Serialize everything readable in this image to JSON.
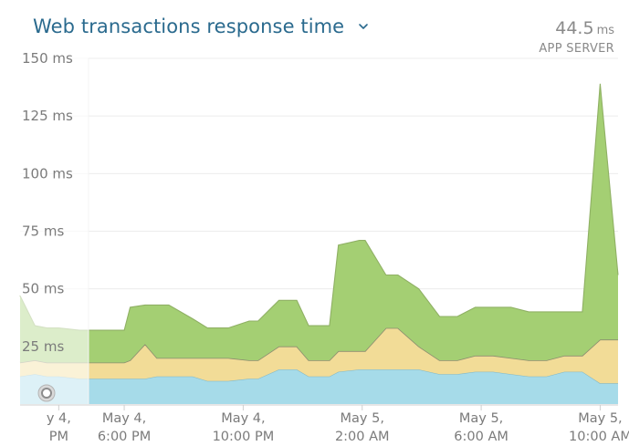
{
  "header": {
    "title": "Web transactions response time",
    "metric_value": "44.5",
    "metric_unit": "ms",
    "metric_label": "APP SERVER",
    "dropdown_icon": "chevron-down-icon"
  },
  "colors": {
    "title": "#2a6a8e",
    "series": [
      "#a6dbe9",
      "#f2dc97",
      "#a4cf73"
    ],
    "series_line": [
      "#7fb7c8",
      "#8c8c70",
      "#8fb064"
    ]
  },
  "chart_data": {
    "type": "area",
    "stacked": true,
    "ylim": [
      0,
      150
    ],
    "yticks": [
      {
        "value": 150,
        "label": "150 ms"
      },
      {
        "value": 125,
        "label": "125 ms"
      },
      {
        "value": 100,
        "label": "100 ms"
      },
      {
        "value": 75,
        "label": "75 ms"
      },
      {
        "value": 50,
        "label": "50 ms"
      },
      {
        "value": 25,
        "label": "25 ms"
      }
    ],
    "xlim": [
      -9.5,
      10.6
    ],
    "xticks": [
      {
        "value": -8.2,
        "label": [
          "y 4,",
          "PM"
        ]
      },
      {
        "value": -6,
        "label": [
          "May 4,",
          "6:00 PM"
        ]
      },
      {
        "value": -2,
        "label": [
          "May 4,",
          "10:00 PM"
        ]
      },
      {
        "value": 2,
        "label": [
          "May 5,",
          "2:00 AM"
        ]
      },
      {
        "value": 6,
        "label": [
          "May 5,",
          "6:00 AM"
        ]
      },
      {
        "value": 10,
        "label": [
          "May 5,",
          "10:00 AM"
        ]
      }
    ],
    "highlight_until": -7.2,
    "grid": true,
    "x": [
      -9.5,
      -9,
      -8.6,
      -8.2,
      -7.5,
      -7.2,
      -6.5,
      -6,
      -5.8,
      -5.3,
      -4.9,
      -4.5,
      -3.7,
      -3.2,
      -2.5,
      -1.8,
      -1.5,
      -0.8,
      -0.2,
      0.2,
      0.9,
      1.2,
      1.9,
      2.1,
      2.8,
      3.2,
      3.9,
      4.6,
      5.2,
      5.8,
      6.4,
      7.0,
      7.6,
      8.2,
      8.8,
      9.4,
      10.0,
      10.6
    ],
    "series": [
      {
        "values": [
          12,
          13,
          12,
          12,
          11,
          11,
          11,
          11,
          11,
          11,
          12,
          12,
          12,
          10,
          10,
          11,
          11,
          15,
          15,
          12,
          12,
          14,
          15,
          15,
          15,
          15,
          15,
          13,
          13,
          14,
          14,
          13,
          12,
          12,
          14,
          14,
          9,
          9
        ]
      },
      {
        "values": [
          6,
          6,
          6,
          6,
          7,
          7,
          7,
          7,
          8,
          15,
          8,
          8,
          8,
          10,
          10,
          8,
          8,
          10,
          10,
          7,
          7,
          9,
          8,
          8,
          18,
          18,
          10,
          6,
          6,
          7,
          7,
          7,
          7,
          7,
          7,
          7,
          19,
          19
        ]
      },
      {
        "values": [
          29,
          15,
          15,
          15,
          14,
          14,
          14,
          14,
          23,
          17,
          23,
          23,
          17,
          13,
          13,
          17,
          17,
          20,
          20,
          15,
          15,
          46,
          48,
          48,
          23,
          23,
          25,
          19,
          19,
          21,
          21,
          22,
          21,
          21,
          19,
          19,
          111,
          28
        ]
      }
    ]
  }
}
